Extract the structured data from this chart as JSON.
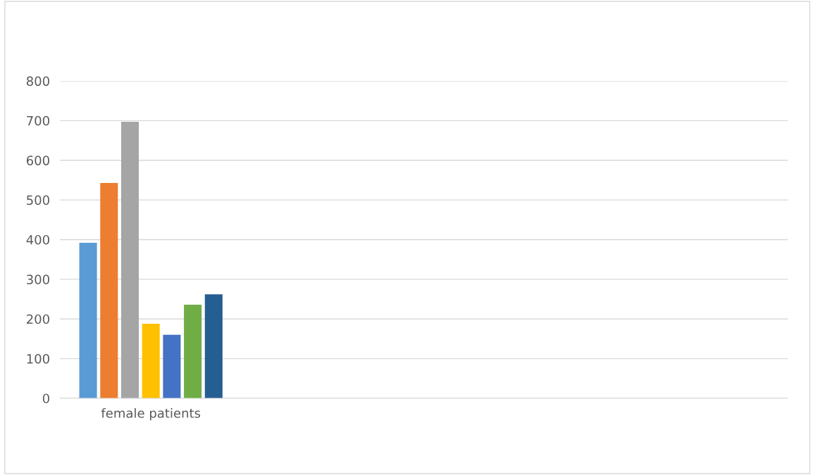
{
  "chart_data": {
    "type": "bar",
    "categories": [
      "female patients",
      null,
      null,
      null
    ],
    "series": [
      {
        "color": "#5b9bd5",
        "values": [
          392,
          null,
          null,
          null
        ]
      },
      {
        "color": "#ed7d31",
        "values": [
          543,
          null,
          null,
          null
        ]
      },
      {
        "color": "#a5a5a5",
        "values": [
          697,
          null,
          null,
          null
        ]
      },
      {
        "color": "#ffc000",
        "values": [
          188,
          null,
          null,
          null
        ]
      },
      {
        "color": "#4472c4",
        "values": [
          160,
          null,
          null,
          null
        ]
      },
      {
        "color": "#70ad47",
        "values": [
          236,
          null,
          null,
          null
        ]
      },
      {
        "color": "#255e91",
        "values": [
          262,
          null,
          null,
          null
        ]
      }
    ],
    "ylim": [
      0,
      800
    ],
    "yticks": [
      0,
      100,
      200,
      300,
      400,
      500,
      600,
      700,
      800
    ],
    "grid": "y",
    "legend": false
  }
}
